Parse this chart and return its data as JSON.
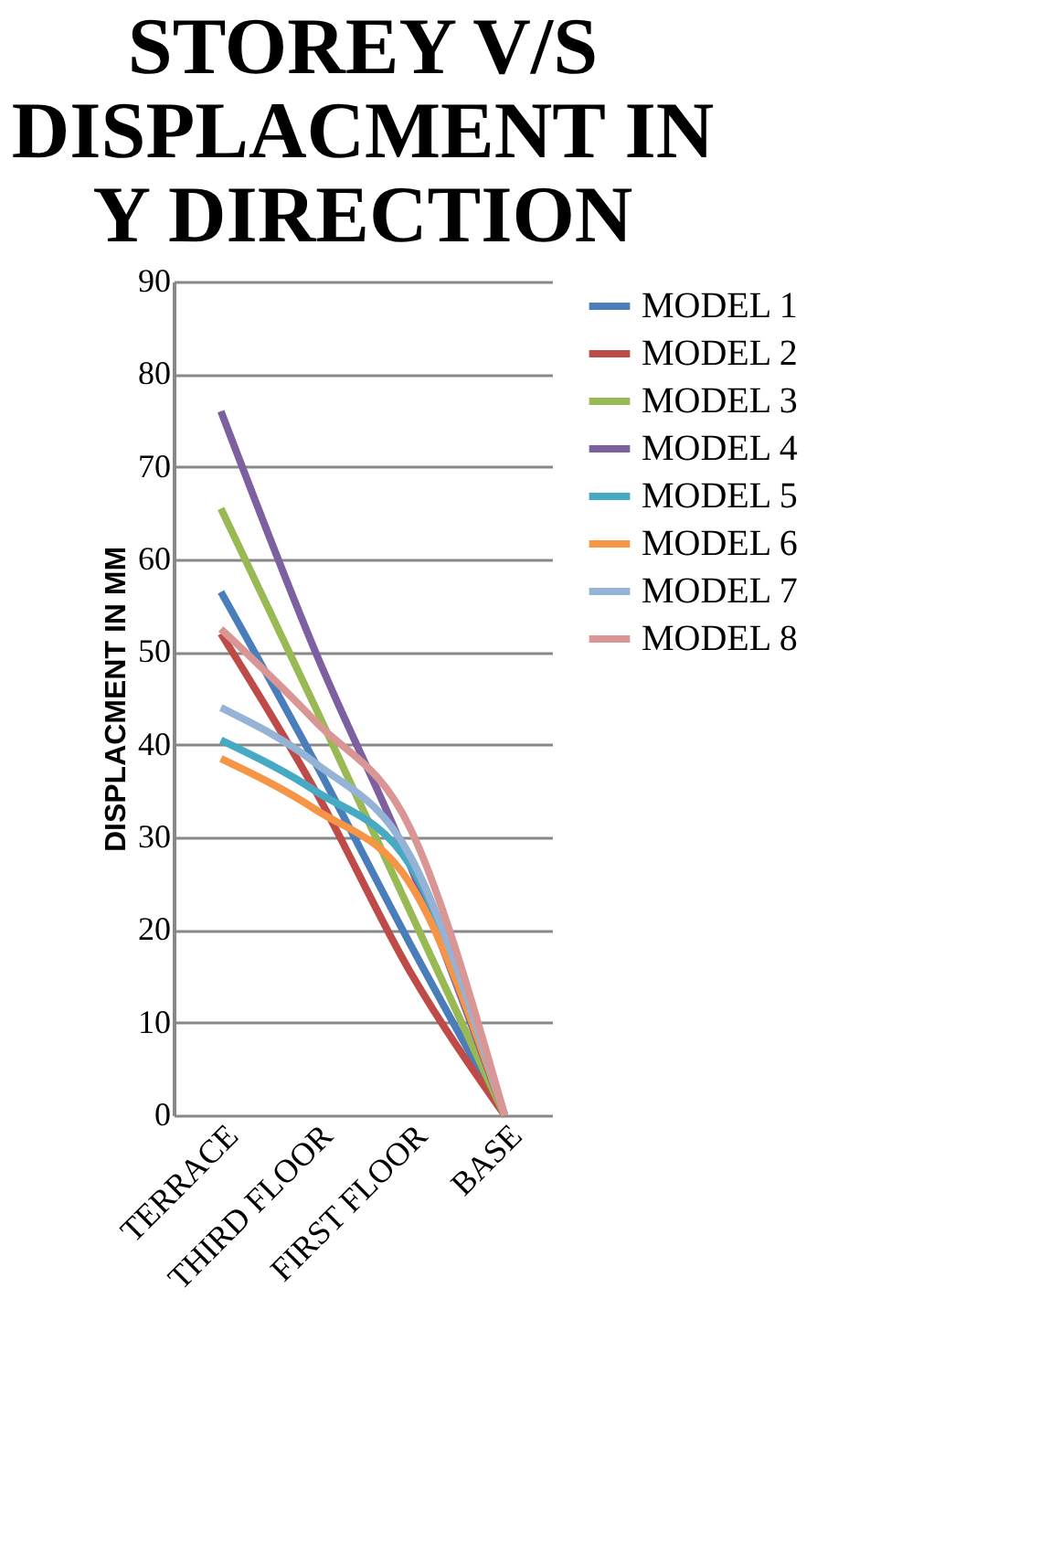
{
  "chart_data": {
    "type": "line",
    "title": "STOREY V/S DISPLACMENT IN Y DIRECTION",
    "ylabel": "DISPLACMENT IN MM",
    "categories": [
      "TERRACE",
      "THIRD FLOOR",
      "FIRST FLOOR",
      "BASE"
    ],
    "series": [
      {
        "name": "MODEL 1",
        "color": "#4a7ebb",
        "values": [
          56.5,
          38,
          18.5,
          0
        ]
      },
      {
        "name": "MODEL 2",
        "color": "#be4b48",
        "values": [
          52,
          35,
          15.5,
          0
        ]
      },
      {
        "name": "MODEL 3",
        "color": "#98b954",
        "values": [
          65.5,
          44,
          22,
          0
        ]
      },
      {
        "name": "MODEL 4",
        "color": "#7d60a0",
        "values": [
          76,
          50,
          27,
          0
        ]
      },
      {
        "name": "MODEL 5",
        "color": "#46aac5",
        "values": [
          40.5,
          35,
          27,
          0
        ]
      },
      {
        "name": "MODEL 6",
        "color": "#f69545",
        "values": [
          38.5,
          33,
          25,
          0
        ]
      },
      {
        "name": "MODEL 7",
        "color": "#95b3d7",
        "values": [
          44,
          38,
          28,
          0
        ]
      },
      {
        "name": "MODEL 8",
        "color": "#d99694",
        "values": [
          52.5,
          42.5,
          31,
          0
        ]
      }
    ],
    "ylim": [
      0,
      90
    ],
    "yticks": [
      0,
      10,
      20,
      30,
      40,
      50,
      60,
      70,
      80,
      90
    ],
    "grid": "y",
    "legend": "right",
    "marker": "none",
    "line_style": "solid"
  }
}
